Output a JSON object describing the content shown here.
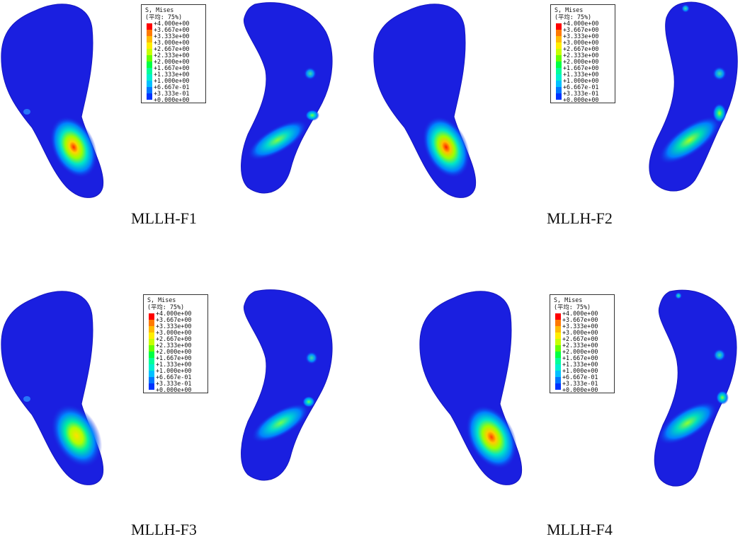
{
  "legend": {
    "title": "S, Mises",
    "subtitle": "(平均: 75%)",
    "ticks": [
      "+4.000e+00",
      "+3.667e+00",
      "+3.333e+00",
      "+3.000e+00",
      "+2.667e+00",
      "+2.333e+00",
      "+2.000e+00",
      "+1.667e+00",
      "+1.333e+00",
      "+1.000e+00",
      "+6.667e-01",
      "+3.333e-01",
      "+0.000e+00"
    ],
    "colors": [
      "#ff0000",
      "#ff7a00",
      "#ffbb00",
      "#ffee00",
      "#c8ff00",
      "#66ff00",
      "#00ff44",
      "#00ff99",
      "#00f0d0",
      "#00c0ff",
      "#0077ff",
      "#0033ff"
    ]
  },
  "panels": [
    {
      "caption": "MLLH-F1"
    },
    {
      "caption": "MLLH-F2"
    },
    {
      "caption": "MLLH-F3"
    },
    {
      "caption": "MLLH-F4"
    }
  ],
  "colors": {
    "base": "#1a1fe0",
    "accent": "#ff0000"
  }
}
